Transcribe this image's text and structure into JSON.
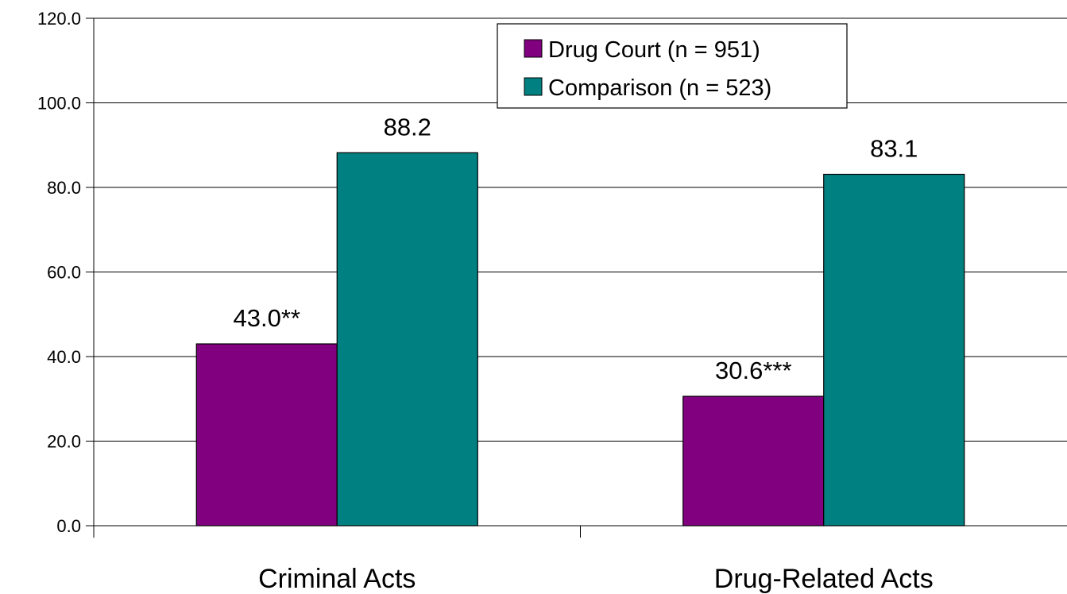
{
  "chart_data": {
    "type": "bar",
    "categories": [
      "Criminal Acts",
      "Drug-Related Acts"
    ],
    "series": [
      {
        "name": "Drug Court (n = 951)",
        "color": "#800080",
        "values": [
          43.0,
          30.6
        ],
        "labels": [
          "43.0**",
          "30.6***"
        ]
      },
      {
        "name": "Comparison (n = 523)",
        "color": "#008080",
        "values": [
          88.2,
          83.1
        ],
        "labels": [
          "88.2",
          "83.1"
        ]
      }
    ],
    "yticks": [
      "0.0",
      "20.0",
      "40.0",
      "60.0",
      "80.0",
      "100.0",
      "120.0"
    ],
    "ylim": [
      0,
      120
    ],
    "grid": true,
    "legend": "top-center"
  }
}
